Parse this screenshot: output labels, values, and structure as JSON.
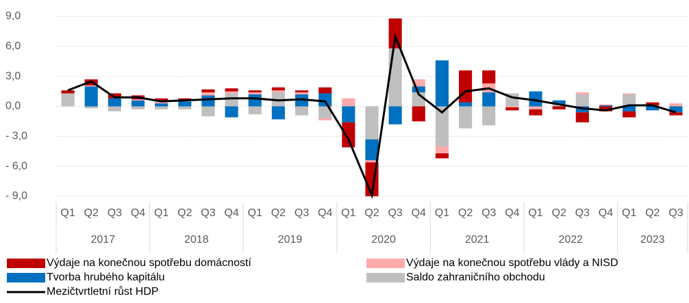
{
  "chart_data": {
    "type": "stacked_bar_line",
    "categories": [
      "Q1",
      "Q2",
      "Q3",
      "Q4",
      "Q1",
      "Q2",
      "Q3",
      "Q4",
      "Q1",
      "Q2",
      "Q3",
      "Q4",
      "Q1",
      "Q2",
      "Q3",
      "Q4",
      "Q1",
      "Q2",
      "Q3",
      "Q4",
      "Q1",
      "Q2",
      "Q3",
      "Q4",
      "Q1",
      "Q2",
      "Q3"
    ],
    "year_groups": [
      {
        "label": "2017",
        "span": 4
      },
      {
        "label": "2018",
        "span": 4
      },
      {
        "label": "2019",
        "span": 4
      },
      {
        "label": "2020",
        "span": 4
      },
      {
        "label": "2021",
        "span": 4
      },
      {
        "label": "2022",
        "span": 4
      },
      {
        "label": "2023",
        "span": 3
      }
    ],
    "series": [
      {
        "name": "Výdaje na konečnou spotřebu domácností",
        "color": "#c00000",
        "values": [
          0.3,
          0.6,
          0.5,
          0.4,
          0.3,
          0.2,
          0.3,
          0.3,
          0.2,
          0.3,
          0.2,
          0.6,
          -2.5,
          -3.4,
          3.0,
          -1.5,
          -0.5,
          3.2,
          1.3,
          -0.3,
          -0.6,
          -0.3,
          -1.0,
          -0.5,
          -0.6,
          0.3,
          -0.3
        ]
      },
      {
        "name": "Výdaje na konečnou spotřebu vlády a NISD",
        "color": "#ffaaaa",
        "values": [
          0.0,
          0.1,
          0.0,
          0.1,
          0.2,
          0.1,
          0.3,
          0.2,
          0.2,
          0.2,
          0.2,
          -0.2,
          0.8,
          -0.2,
          0.0,
          0.7,
          -0.7,
          0.0,
          0.9,
          -0.1,
          -0.3,
          0.0,
          0.2,
          0.1,
          0.1,
          0.0,
          0.3
        ]
      },
      {
        "name": "Tvorba hrubého kapitálu",
        "color": "#0070c0",
        "values": [
          0.0,
          2.0,
          0.8,
          0.6,
          0.3,
          0.5,
          1.1,
          -1.1,
          1.2,
          -1.3,
          1.2,
          1.3,
          -1.6,
          -2.1,
          -1.8,
          0.6,
          4.6,
          0.4,
          1.4,
          0.0,
          1.5,
          0.4,
          -0.6,
          0.1,
          -0.5,
          -0.4,
          -0.6
        ]
      },
      {
        "name": "Saldo zahraničního obchodu",
        "color": "#bfbfbf",
        "values": [
          1.3,
          -0.2,
          -0.5,
          -0.3,
          -0.3,
          -0.3,
          -1.0,
          1.3,
          -0.8,
          1.4,
          -0.9,
          -1.2,
          0.0,
          -3.3,
          5.8,
          1.4,
          -4.0,
          -2.2,
          -1.9,
          1.3,
          0.0,
          0.2,
          1.2,
          0.0,
          1.2,
          0.1,
          0.0
        ]
      }
    ],
    "line": {
      "name": "Mezičtvrtletní růst HDP",
      "color": "#000000",
      "values": [
        1.6,
        2.5,
        0.9,
        0.9,
        0.5,
        0.6,
        0.7,
        0.8,
        0.8,
        0.6,
        0.7,
        0.5,
        -3.3,
        -8.9,
        7.0,
        1.2,
        -0.6,
        1.5,
        1.8,
        0.9,
        0.6,
        0.2,
        -0.2,
        -0.4,
        0.1,
        0.1,
        -0.6
      ]
    },
    "ylim": [
      -9,
      9
    ],
    "yticks": [
      {
        "value": 9,
        "label": "9,0"
      },
      {
        "value": 6,
        "label": "6,0"
      },
      {
        "value": 3,
        "label": "3,0"
      },
      {
        "value": 0,
        "label": "0,0"
      },
      {
        "value": -3,
        "label": "- 3,0"
      },
      {
        "value": -6,
        "label": "- 6,0"
      },
      {
        "value": -9,
        "label": "- 9,0"
      }
    ],
    "grid": true
  }
}
